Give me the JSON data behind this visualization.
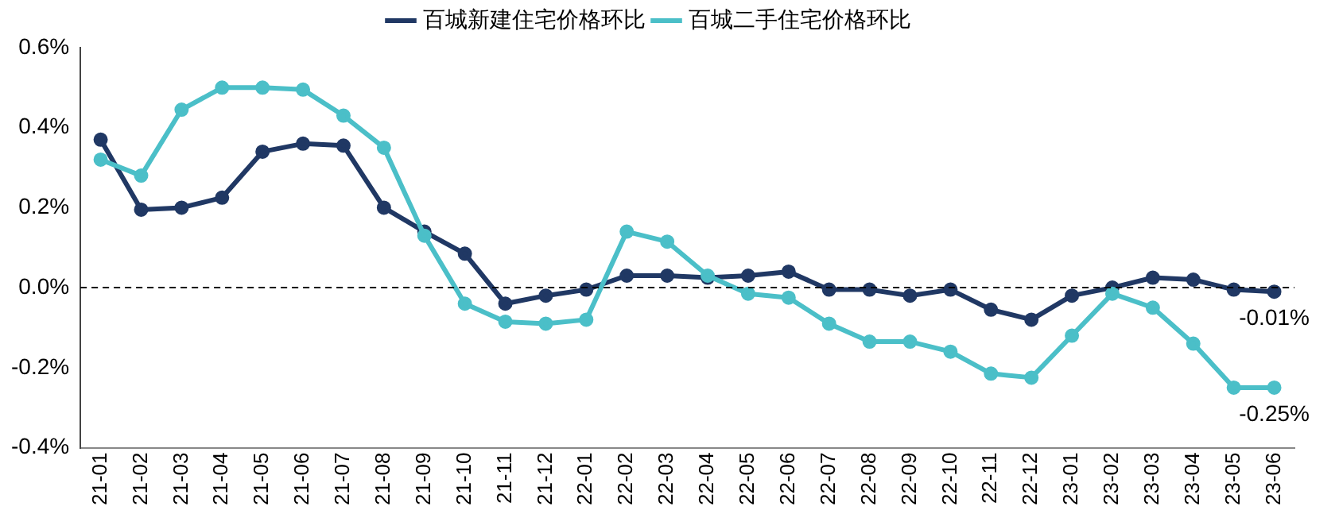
{
  "chart_data": {
    "type": "line",
    "categories": [
      "21-01",
      "21-02",
      "21-03",
      "21-04",
      "21-05",
      "21-06",
      "21-07",
      "21-08",
      "21-09",
      "21-10",
      "21-11",
      "21-12",
      "22-01",
      "22-02",
      "22-03",
      "22-04",
      "22-05",
      "22-06",
      "22-07",
      "22-08",
      "22-09",
      "22-10",
      "22-11",
      "22-12",
      "23-01",
      "23-02",
      "23-03",
      "23-04",
      "23-05",
      "23-06"
    ],
    "series": [
      {
        "name": "百城新建住宅价格环比",
        "color": "#203864",
        "values": [
          0.37,
          0.195,
          0.2,
          0.225,
          0.34,
          0.36,
          0.355,
          0.2,
          0.14,
          0.085,
          -0.04,
          -0.02,
          -0.005,
          0.03,
          0.03,
          0.025,
          0.03,
          0.04,
          -0.005,
          -0.005,
          -0.02,
          -0.005,
          -0.055,
          -0.08,
          -0.02,
          0.0,
          0.025,
          0.02,
          -0.005,
          -0.01
        ],
        "value_labels": [
          null,
          null,
          null,
          null,
          null,
          null,
          null,
          null,
          null,
          null,
          null,
          null,
          null,
          null,
          null,
          null,
          null,
          null,
          null,
          null,
          null,
          null,
          null,
          null,
          null,
          null,
          null,
          null,
          null,
          "-0.01%"
        ]
      },
      {
        "name": "百城二手住宅价格环比",
        "color": "#4bbfc8",
        "values": [
          0.32,
          0.28,
          0.445,
          0.5,
          0.5,
          0.495,
          0.43,
          0.35,
          0.13,
          -0.04,
          -0.085,
          -0.09,
          -0.08,
          0.14,
          0.115,
          0.03,
          -0.015,
          -0.025,
          -0.09,
          -0.135,
          -0.135,
          -0.16,
          -0.215,
          -0.225,
          -0.12,
          -0.015,
          -0.05,
          -0.14,
          -0.25,
          -0.25
        ],
        "value_labels": [
          null,
          null,
          null,
          null,
          null,
          null,
          null,
          null,
          null,
          null,
          null,
          null,
          null,
          null,
          null,
          null,
          null,
          null,
          null,
          null,
          null,
          null,
          null,
          null,
          null,
          null,
          null,
          null,
          null,
          "-0.25%"
        ]
      }
    ],
    "ylim": [
      -0.4,
      0.6
    ],
    "yticks": [
      {
        "value": -0.4,
        "label": "-0.4%"
      },
      {
        "value": -0.2,
        "label": "-0.2%"
      },
      {
        "value": 0,
        "label": "0.0%"
      },
      {
        "value": 0.2,
        "label": "0.2%"
      },
      {
        "value": 0.4,
        "label": "0.4%"
      },
      {
        "value": 0.6,
        "label": "0.6%"
      }
    ],
    "ref_lines": [
      {
        "axis": "y",
        "value": 0,
        "color": "#000000",
        "line_style": "dashed"
      }
    ],
    "grid": false,
    "legend": "top",
    "marker": "circle",
    "line_style": "solid"
  }
}
